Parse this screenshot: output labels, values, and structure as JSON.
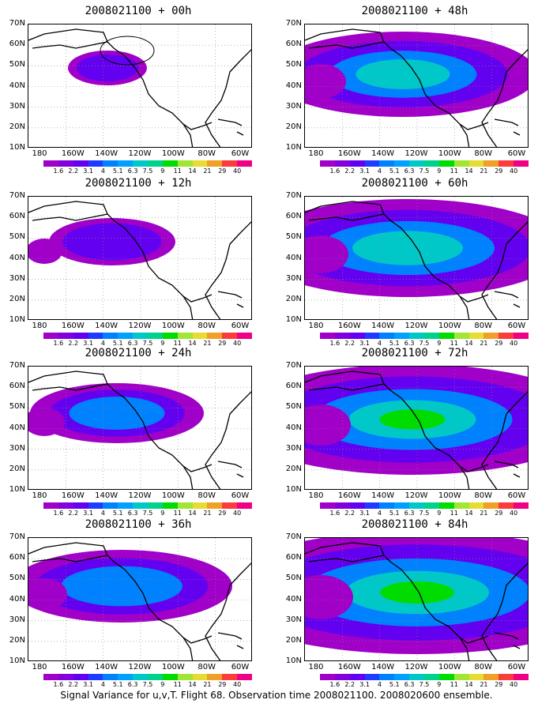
{
  "caption": "Signal Variance for u,v,T. Flight 68. Observation time 2008021100. 2008020600 ensemble.",
  "colorbar": {
    "labels": [
      "1.6",
      "2.2",
      "3.1",
      "4",
      "5.1",
      "6.3",
      "7.5",
      "9",
      "11",
      "14",
      "21",
      "29",
      "40"
    ],
    "colors": [
      "#a000c8",
      "#8200dc",
      "#6400f0",
      "#1e3cff",
      "#0082ff",
      "#00a0ff",
      "#00c8c8",
      "#00d28c",
      "#00dc00",
      "#a0e632",
      "#e6dc32",
      "#f0a028",
      "#fa3c3c",
      "#f00082"
    ]
  },
  "axes": {
    "lat_labels": [
      "70N",
      "60N",
      "50N",
      "40N",
      "30N",
      "20N",
      "10N"
    ],
    "lon_labels": [
      "180",
      "160W",
      "140W",
      "120W",
      "100W",
      "80W",
      "60W"
    ]
  },
  "panels": [
    {
      "title": "2008021100 + 00h",
      "col": 0,
      "row": 0,
      "level": 0
    },
    {
      "title": "2008021100 + 48h",
      "col": 1,
      "row": 0,
      "level": 4
    },
    {
      "title": "2008021100 + 12h",
      "col": 0,
      "row": 1,
      "level": 1
    },
    {
      "title": "2008021100 + 60h",
      "col": 1,
      "row": 1,
      "level": 5
    },
    {
      "title": "2008021100 + 24h",
      "col": 0,
      "row": 2,
      "level": 2
    },
    {
      "title": "2008021100 + 72h",
      "col": 1,
      "row": 2,
      "level": 6
    },
    {
      "title": "2008021100 + 36h",
      "col": 0,
      "row": 3,
      "level": 3
    },
    {
      "title": "2008021100 + 84h",
      "col": 1,
      "row": 3,
      "level": 7
    }
  ]
}
